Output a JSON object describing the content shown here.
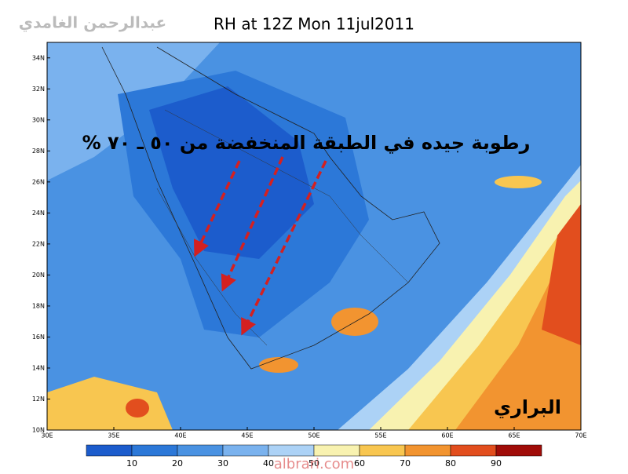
{
  "header": {
    "author": "عبدالرحمن الغامدي",
    "title": "RH at 12Z Mon 11jul2011"
  },
  "map": {
    "lat_range": [
      10,
      35
    ],
    "lon_range": [
      30,
      70
    ],
    "lat_ticks": [
      {
        "value": 10,
        "label": "10N"
      },
      {
        "value": 12,
        "label": "12N"
      },
      {
        "value": 14,
        "label": "14N"
      },
      {
        "value": 16,
        "label": "16N"
      },
      {
        "value": 18,
        "label": "18N"
      },
      {
        "value": 20,
        "label": "20N"
      },
      {
        "value": 22,
        "label": "22N"
      },
      {
        "value": 24,
        "label": "24N"
      },
      {
        "value": 26,
        "label": "26N"
      },
      {
        "value": 28,
        "label": "28N"
      },
      {
        "value": 30,
        "label": "30N"
      },
      {
        "value": 32,
        "label": "32N"
      },
      {
        "value": 34,
        "label": "34N"
      }
    ],
    "lon_ticks": [
      {
        "value": 30,
        "label": "30E"
      },
      {
        "value": 35,
        "label": "35E"
      },
      {
        "value": 40,
        "label": "40E"
      },
      {
        "value": 45,
        "label": "45E"
      },
      {
        "value": 50,
        "label": "50E"
      },
      {
        "value": 55,
        "label": "55E"
      },
      {
        "value": 60,
        "label": "60E"
      },
      {
        "value": 65,
        "label": "65E"
      },
      {
        "value": 70,
        "label": "70E"
      }
    ]
  },
  "annotations": {
    "main": "رطوبة جيده في الطبقة المنخفضة من ٥٠ ـ ٧٠ %",
    "signature": "البراري",
    "watermark": "albrari.com"
  },
  "colorbar": {
    "levels": [
      10,
      20,
      30,
      40,
      50,
      60,
      70,
      80,
      90
    ],
    "colors": [
      "#1c5ccc",
      "#2c78d8",
      "#4a92e2",
      "#7ab2ee",
      "#acd2f6",
      "#f8f2b0",
      "#f8c650",
      "#f29430",
      "#e24e1e",
      "#a00c08"
    ]
  }
}
